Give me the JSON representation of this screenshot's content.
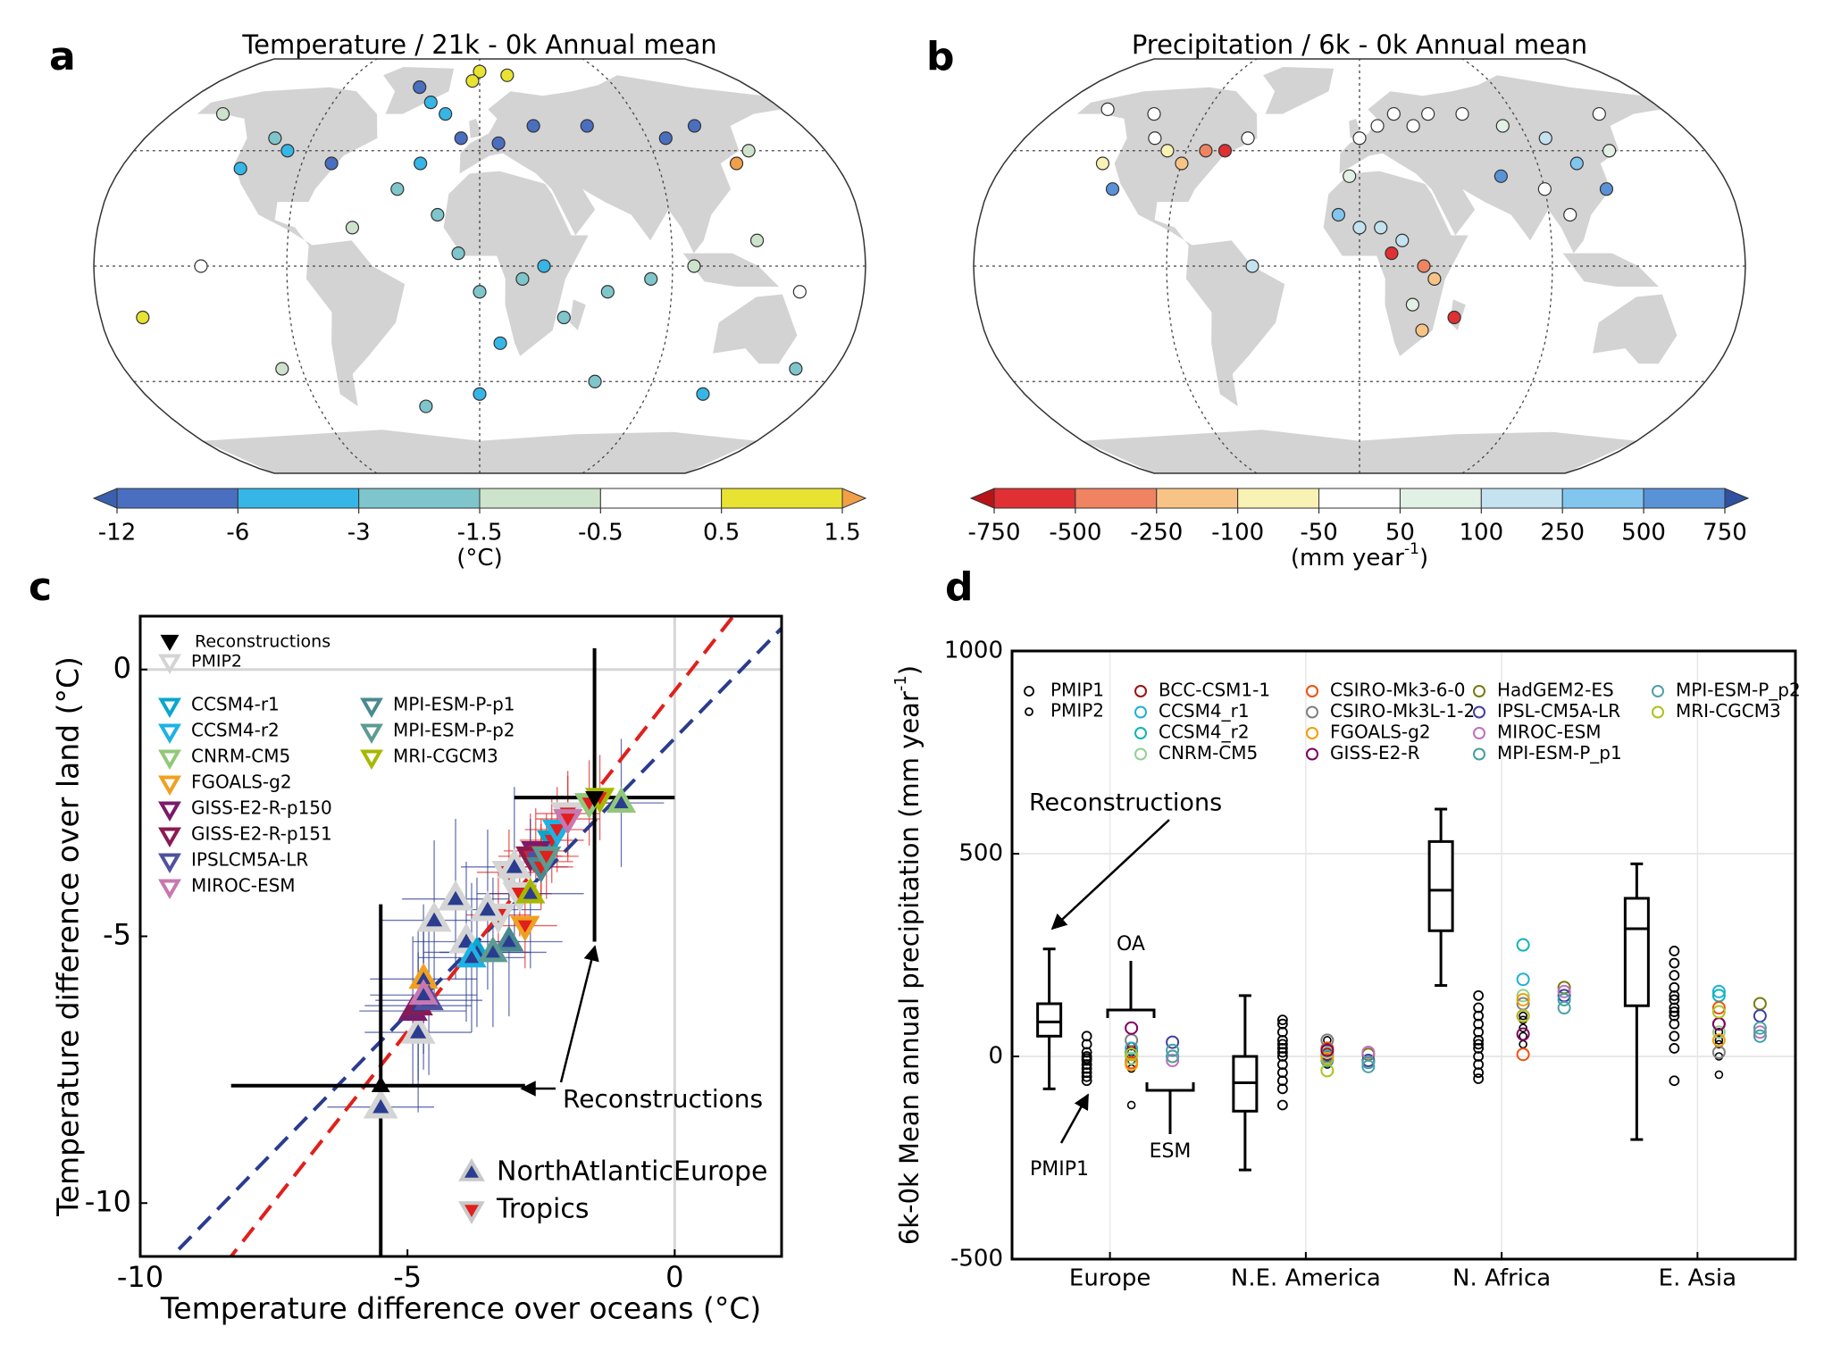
{
  "chart_data": [
    {
      "type": "map",
      "panel": "a",
      "title": "Temperature / 21k - 0k Annual mean",
      "colorbar": {
        "ticks": [
          -12,
          -6,
          -3,
          -1.5,
          -0.5,
          0.5,
          1.5
        ],
        "colors": [
          "#3a5fae",
          "#4a6fc0",
          "#35b6e6",
          "#7ec6cc",
          "#cde3cc",
          "#ffffff",
          "#e8e232",
          "#f2a048"
        ],
        "label": "(°C)"
      },
      "points": {
        "lon": [
          -75,
          -100,
          -110,
          -120,
          -150,
          -40,
          -30,
          -20,
          -10,
          10,
          30,
          60,
          100,
          120,
          140,
          -30,
          -40,
          -20,
          -60,
          -10,
          0,
          10,
          40,
          60,
          80,
          100,
          130,
          150,
          -130,
          -160,
          -100,
          160,
          60,
          0,
          -30,
          0,
          20,
          -5,
          130,
          120,
          20,
          30
        ],
        "lat": [
          40,
          45,
          50,
          38,
          60,
          72,
          65,
          60,
          50,
          48,
          55,
          55,
          50,
          55,
          45,
          40,
          30,
          20,
          15,
          5,
          -10,
          -30,
          -20,
          -10,
          -5,
          0,
          10,
          -10,
          0,
          -20,
          -40,
          -40,
          -45,
          -50,
          -55,
          80,
          78,
          75,
          40,
          -50,
          -5,
          0
        ],
        "values": [
          -8,
          -4,
          -2,
          -4,
          -1,
          -9,
          -5,
          -6,
          -8,
          -9,
          -8,
          -8,
          -7,
          -9,
          -1,
          -4,
          -3,
          -2,
          -1,
          -2,
          -3,
          -4,
          -2,
          -2,
          -2,
          -1,
          -1,
          0.3,
          0,
          0.8,
          -1,
          -2,
          -3,
          -4,
          -3,
          1.0,
          0.8,
          1.2,
          2.0,
          -6,
          -3,
          -4
        ]
      }
    },
    {
      "type": "map",
      "panel": "b",
      "title": "Precipitation / 6k - 0k Annual mean",
      "colorbar": {
        "ticks": [
          -750,
          -500,
          -250,
          -100,
          -50,
          50,
          100,
          250,
          500,
          750
        ],
        "colors": [
          "#b81418",
          "#e03034",
          "#f08462",
          "#f8c486",
          "#f8f2b4",
          "#ffffff",
          "#e2f1e6",
          "#c4e2f0",
          "#82c6f0",
          "#5a92d8",
          "#3050a0"
        ],
        "label": "(mm year",
        "label_sup": "-1",
        "label_end": ")"
      },
      "points": {
        "lon": [
          -100,
          -90,
          -80,
          -70,
          -110,
          -120,
          -130,
          -150,
          -60,
          0,
          10,
          20,
          30,
          40,
          60,
          80,
          100,
          110,
          120,
          130,
          140,
          70,
          -10,
          0,
          10,
          20,
          30,
          35,
          25,
          30,
          45,
          15,
          -50,
          -120,
          100,
          -5,
          90
        ],
        "lat": [
          45,
          40,
          45,
          45,
          50,
          60,
          40,
          62,
          50,
          50,
          55,
          60,
          55,
          60,
          60,
          55,
          50,
          40,
          30,
          45,
          60,
          35,
          20,
          15,
          15,
          10,
          0,
          -5,
          -15,
          -25,
          -20,
          5,
          0,
          30,
          20,
          35,
          30
        ],
        "values": [
          -100,
          -200,
          -300,
          -600,
          -30,
          0,
          -80,
          20,
          -20,
          -30,
          0,
          20,
          40,
          10,
          0,
          60,
          200,
          300,
          600,
          50,
          0,
          500,
          300,
          200,
          150,
          120,
          -400,
          -200,
          80,
          -150,
          -600,
          -700,
          150,
          600,
          -50,
          60,
          40
        ]
      }
    },
    {
      "type": "scatter",
      "panel": "c",
      "xlabel": "Temperature difference over oceans (°C)",
      "ylabel": "Temperature difference over land (°C)",
      "xlim": [
        -10,
        2
      ],
      "ylim": [
        -11,
        1
      ],
      "xticks": [
        -10,
        -5,
        0
      ],
      "yticks": [
        -10,
        -5,
        0
      ],
      "zero_lines": true,
      "annotation": "Reconstructions",
      "regions": [
        {
          "name": "NorthAtlanticEurope",
          "color": "#2a3c8f",
          "marker": "up",
          "slope": 1.032,
          "intercept": -1.29
        },
        {
          "name": "Tropics",
          "color": "#e0201c",
          "marker": "down",
          "slope": 1.277,
          "intercept": -0.4
        }
      ],
      "reconstructions": {
        "name": "Reconstructions",
        "color": "#000000",
        "x": [
          -1.5,
          -5.5
        ],
        "y": [
          -2.4,
          -7.8
        ],
        "xlow": [
          -3.0,
          -8.3
        ],
        "xhigh": [
          0.0,
          -2.8
        ],
        "ylow": [
          -5.1,
          -11.0
        ],
        "yhigh": [
          0.4,
          -4.4
        ],
        "region": [
          "Tropics",
          "NorthAtlanticEurope"
        ]
      },
      "series": [
        {
          "name": "PMIP2",
          "color": "#d4d4d4",
          "x": [
            -3.1,
            -2.9,
            -3.3,
            -2.0,
            -5.5,
            -4.8,
            -3.9,
            -4.5,
            -3.5,
            -3.0,
            -4.1
          ],
          "y": [
            -3.8,
            -4.2,
            -4.6,
            -2.7,
            -8.2,
            -6.8,
            -5.1,
            -4.7,
            -4.5,
            -3.7,
            -4.3
          ],
          "xerr": [
            0.6,
            0.6,
            0.6,
            0.6,
            1.0,
            1.0,
            1.0,
            1.0,
            1.0,
            1.0,
            1.0
          ],
          "yerr": [
            0.8,
            0.8,
            0.8,
            0.8,
            1.5,
            1.5,
            1.5,
            1.5,
            1.5,
            1.5,
            1.5
          ],
          "region": [
            "Tropics",
            "Tropics",
            "Tropics",
            "Tropics",
            "NorthAtlanticEurope",
            "NorthAtlanticEurope",
            "NorthAtlanticEurope",
            "NorthAtlanticEurope",
            "NorthAtlanticEurope",
            "NorthAtlanticEurope",
            "NorthAtlanticEurope"
          ]
        },
        {
          "name": "CCSM4-r1",
          "color": "#0aa6cc",
          "x": [
            -2.3,
            -3.7
          ],
          "y": [
            -3.2,
            -5.3
          ],
          "xerr": [
            0.6,
            1.0
          ],
          "yerr": [
            0.8,
            1.4
          ],
          "region": [
            "Tropics",
            "NorthAtlanticEurope"
          ]
        },
        {
          "name": "CCSM4-r2",
          "color": "#1eb2e4",
          "x": [
            -2.2,
            -3.8
          ],
          "y": [
            -3.0,
            -5.4
          ],
          "xerr": [
            0.6,
            1.0
          ],
          "yerr": [
            0.8,
            1.4
          ],
          "region": [
            "Tropics",
            "NorthAtlanticEurope"
          ]
        },
        {
          "name": "CNRM-CM5",
          "color": "#92c87a",
          "x": [
            -1.6,
            -1.0
          ],
          "y": [
            -2.5,
            -2.5
          ],
          "xerr": [
            0.6,
            0.8
          ],
          "yerr": [
            0.8,
            1.2
          ],
          "region": [
            "Tropics",
            "NorthAtlanticEurope"
          ]
        },
        {
          "name": "FGOALS-g2",
          "color": "#f0a020",
          "x": [
            -2.8,
            -4.7
          ],
          "y": [
            -4.8,
            -5.8
          ],
          "xerr": [
            0.6,
            1.0
          ],
          "yerr": [
            0.8,
            1.4
          ],
          "region": [
            "Tropics",
            "NorthAtlanticEurope"
          ]
        },
        {
          "name": "GISS-E2-R-p150",
          "color": "#7a1a6a",
          "x": [
            -2.6,
            -4.9
          ],
          "y": [
            -3.4,
            -6.4
          ],
          "xerr": [
            0.6,
            1.0
          ],
          "yerr": [
            0.8,
            1.4
          ],
          "region": [
            "Tropics",
            "NorthAtlanticEurope"
          ]
        },
        {
          "name": "GISS-E2-R-p151",
          "color": "#8c1a50",
          "x": [
            -2.7,
            -4.8
          ],
          "y": [
            -3.5,
            -6.3
          ],
          "xerr": [
            0.6,
            1.0
          ],
          "yerr": [
            0.8,
            1.4
          ],
          "region": [
            "Tropics",
            "NorthAtlanticEurope"
          ]
        },
        {
          "name": "IPSLCM5A-LR",
          "color": "#5050a0",
          "x": [
            -2.5,
            -4.6
          ],
          "y": [
            -3.6,
            -6.2
          ],
          "xerr": [
            0.6,
            1.0
          ],
          "yerr": [
            0.8,
            1.4
          ],
          "region": [
            "Tropics",
            "NorthAtlanticEurope"
          ]
        },
        {
          "name": "MIROC-ESM",
          "color": "#c878b0",
          "x": [
            -2.0,
            -4.7
          ],
          "y": [
            -2.8,
            -6.1
          ],
          "xerr": [
            0.6,
            1.0
          ],
          "yerr": [
            0.8,
            1.4
          ],
          "region": [
            "Tropics",
            "NorthAtlanticEurope"
          ]
        },
        {
          "name": "MPI-ESM-P-p1",
          "color": "#4a8a90",
          "x": [
            -2.5,
            -3.1
          ],
          "y": [
            -3.7,
            -5.1
          ],
          "xerr": [
            0.6,
            1.0
          ],
          "yerr": [
            0.8,
            1.4
          ],
          "region": [
            "Tropics",
            "NorthAtlanticEurope"
          ]
        },
        {
          "name": "MPI-ESM-P-p2",
          "color": "#5c9c92",
          "x": [
            -2.4,
            -3.4
          ],
          "y": [
            -3.5,
            -5.3
          ],
          "xerr": [
            0.6,
            1.0
          ],
          "yerr": [
            0.8,
            1.4
          ],
          "region": [
            "Tropics",
            "NorthAtlanticEurope"
          ]
        },
        {
          "name": "MRI-CGCM3",
          "color": "#a8b800",
          "x": [
            -1.4,
            -2.7
          ],
          "y": [
            -2.4,
            -4.2
          ],
          "xerr": [
            0.6,
            1.0
          ],
          "yerr": [
            0.8,
            1.4
          ],
          "region": [
            "Tropics",
            "NorthAtlanticEurope"
          ]
        }
      ]
    },
    {
      "type": "box",
      "panel": "d",
      "ylabel": "6k-0k Mean annual precipitation (mm year",
      "ylabel_sup": "-1",
      "ylabel_end": ")",
      "categories": [
        "Europe",
        "N.E. America",
        "N. Africa",
        "E. Asia"
      ],
      "ylim": [
        -500,
        1000
      ],
      "yticks": [
        -500,
        0,
        500,
        1000
      ],
      "grid": true,
      "annotations": {
        "reconstructions": "Reconstructions",
        "oa": "OA",
        "esm": "ESM",
        "pmip1": "PMIP1"
      },
      "boxes": [
        {
          "low": -80,
          "q1": 50,
          "median": 85,
          "q3": 130,
          "high": 265
        },
        {
          "low": -280,
          "q1": -135,
          "median": -65,
          "q3": 0,
          "high": 150
        },
        {
          "low": 175,
          "q1": 310,
          "median": 410,
          "q3": 530,
          "high": 610
        },
        {
          "low": -205,
          "q1": 125,
          "median": 315,
          "q3": 390,
          "high": 475
        }
      ],
      "pmip1": {
        "name": "PMIP1",
        "color": "#000000",
        "values": [
          [
            50,
            30,
            10,
            0,
            -10,
            -20,
            -30,
            -40,
            -50,
            -60,
            -5
          ],
          [
            90,
            80,
            60,
            40,
            20,
            0,
            -20,
            -40,
            -60,
            -80,
            -120,
            10,
            30
          ],
          [
            150,
            120,
            100,
            80,
            60,
            40,
            20,
            0,
            -20,
            -40,
            -55,
            30
          ],
          [
            260,
            230,
            200,
            170,
            150,
            120,
            100,
            80,
            50,
            20,
            -60,
            140,
            110
          ]
        ]
      },
      "pmip2": {
        "name": "PMIP2",
        "color": "#000000",
        "values": [
          [
            10,
            -10,
            -30,
            -120,
            25
          ],
          [
            40,
            20,
            0,
            -20
          ],
          [
            100,
            70,
            50,
            30,
            90
          ],
          [
            60,
            30,
            0,
            -45,
            40
          ]
        ]
      },
      "series": [
        {
          "name": "BCC-CSM1-1",
          "color": "#a01010",
          "esm": false,
          "values": [
            10,
            5,
            100,
            80
          ]
        },
        {
          "name": "CCSM4_r1",
          "color": "#20b0d8",
          "esm": false,
          "values": [
            20,
            0,
            190,
            160
          ]
        },
        {
          "name": "CCSM4_r2",
          "color": "#10b4b4",
          "esm": false,
          "values": [
            5,
            -10,
            275,
            150
          ]
        },
        {
          "name": "CNRM-CM5",
          "color": "#92d092",
          "esm": false,
          "values": [
            -5,
            10,
            150,
            60
          ]
        },
        {
          "name": "CSIRO-Mk3-6-0",
          "color": "#f05010",
          "esm": false,
          "values": [
            -15,
            20,
            5,
            120
          ]
        },
        {
          "name": "CSIRO-Mk3L-1-2",
          "color": "#808080",
          "esm": false,
          "values": [
            40,
            40,
            130,
            10
          ]
        },
        {
          "name": "FGOALS-g2",
          "color": "#f0a000",
          "esm": false,
          "values": [
            -20,
            -5,
            140,
            40
          ]
        },
        {
          "name": "GISS-E2-R",
          "color": "#800060",
          "esm": false,
          "values": [
            70,
            15,
            55,
            80
          ]
        },
        {
          "name": "HadGEM2-ES",
          "color": "#7a7a10",
          "esm": true,
          "values": [
            0,
            5,
            170,
            130
          ]
        },
        {
          "name": "IPSL-CM5A-LR",
          "color": "#4040a0",
          "esm": true,
          "values": [
            35,
            -10,
            150,
            100
          ]
        },
        {
          "name": "MIROC-ESM",
          "color": "#c070c0",
          "esm": true,
          "values": [
            -10,
            10,
            160,
            60
          ]
        },
        {
          "name": "MPI-ESM-P_p1",
          "color": "#40a0a0",
          "esm": true,
          "values": [
            15,
            -15,
            140,
            50
          ]
        },
        {
          "name": "MPI-ESM-P_p2",
          "color": "#50a0a8",
          "esm": true,
          "values": [
            0,
            -25,
            120,
            70
          ]
        },
        {
          "name": "MRI-CGCM3",
          "color": "#b0c020",
          "esm": false,
          "values": [
            5,
            -35,
            100,
            110
          ]
        }
      ]
    }
  ]
}
